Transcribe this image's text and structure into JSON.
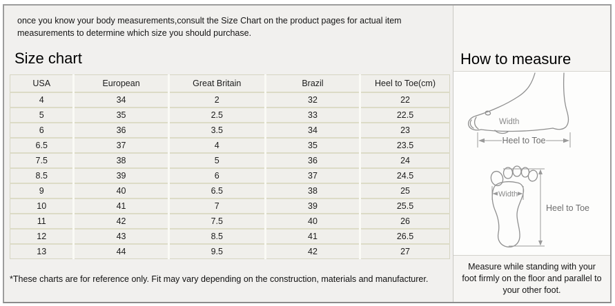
{
  "intro": "once you know your body measurements,consult the Size Chart on the product pages for actual item measurements to determine which size you should purchase.",
  "size_chart": {
    "title": "Size chart",
    "table": {
      "columns": [
        "USA",
        "European",
        "Great Britain",
        "Brazil",
        "Heel to Toe(cm)"
      ],
      "rows": [
        [
          "4",
          "34",
          "2",
          "32",
          "22"
        ],
        [
          "5",
          "35",
          "2.5",
          "33",
          "22.5"
        ],
        [
          "6",
          "36",
          "3.5",
          "34",
          "23"
        ],
        [
          "6.5",
          "37",
          "4",
          "35",
          "23.5"
        ],
        [
          "7.5",
          "38",
          "5",
          "36",
          "24"
        ],
        [
          "8.5",
          "39",
          "6",
          "37",
          "24.5"
        ],
        [
          "9",
          "40",
          "6.5",
          "38",
          "25"
        ],
        [
          "10",
          "41",
          "7",
          "39",
          "25.5"
        ],
        [
          "11",
          "42",
          "7.5",
          "40",
          "26"
        ],
        [
          "12",
          "43",
          "8.5",
          "41",
          "26.5"
        ],
        [
          "13",
          "44",
          "9.5",
          "42",
          "27"
        ]
      ]
    },
    "footnote": "*These charts are for reference only. Fit may vary depending on the construction, materials and manufacturer."
  },
  "how_to_measure": {
    "title": "How to measure",
    "side_diagram": {
      "width_label": "Width",
      "length_label": "Heel to Toe"
    },
    "sole_diagram": {
      "width_label": "Width",
      "length_label": "Heel to Toe"
    },
    "note": "Measure while standing with your foot firmly on the floor and parallel to your other foot."
  },
  "colors": {
    "content_bg": "#f1f0ee",
    "cell_bg": "#f0efeb",
    "row_border": "#dcdbc6",
    "col_border": "#fafaf5",
    "table_border": "#d6d5c2",
    "frame_border": "#9c9c9c",
    "divider": "#c9c8c3",
    "diagram_bg": "#fdfdfc",
    "diagram_stroke": "#8f8f8f"
  }
}
